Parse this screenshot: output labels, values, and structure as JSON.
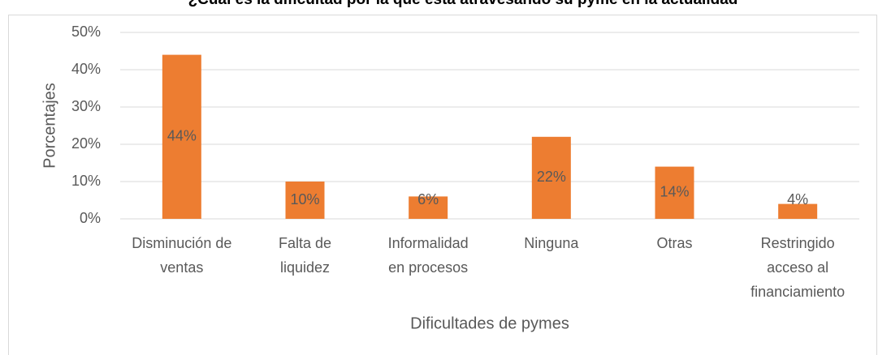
{
  "chart_data": {
    "type": "bar",
    "title": "¿Cuál es la dificultad por la que está atravesando su pyme en la actualidad",
    "categories": [
      [
        "Disminución de",
        "ventas"
      ],
      [
        "Falta de",
        "liquidez"
      ],
      [
        "Informalidad",
        "en procesos"
      ],
      [
        "Ninguna"
      ],
      [
        "Otras"
      ],
      [
        "Restringido",
        "acceso al",
        "financiamiento"
      ]
    ],
    "values": [
      44,
      10,
      6,
      22,
      14,
      4
    ],
    "value_labels": [
      "44%",
      "10%",
      "6%",
      "22%",
      "14%",
      "4%"
    ],
    "color": "#ed7d31",
    "ylim": [
      0,
      50
    ],
    "yticks": [
      {
        "value": 0,
        "label": "0%"
      },
      {
        "value": 10,
        "label": "10%"
      },
      {
        "value": 20,
        "label": "20%"
      },
      {
        "value": 30,
        "label": "30%"
      },
      {
        "value": 40,
        "label": "40%"
      },
      {
        "value": 50,
        "label": "50%"
      }
    ],
    "grid": true,
    "ylabel": "Porcentajes",
    "xlabel": "Dificultades de pymes"
  }
}
